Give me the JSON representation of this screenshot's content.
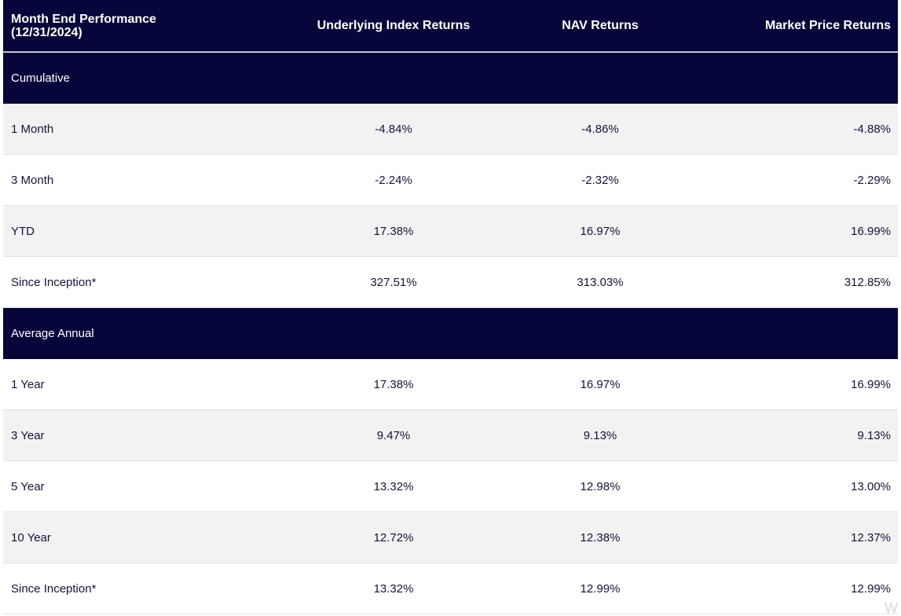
{
  "header": {
    "title": "Month End Performance (12/31/2024)",
    "columns": [
      "Underlying Index Returns",
      "NAV Returns",
      "Market Price Returns"
    ]
  },
  "sections": [
    {
      "title": "Cumulative",
      "rows": [
        [
          "1 Month",
          "-4.84%",
          "-4.86%",
          "-4.88%"
        ],
        [
          "3 Month",
          "-2.24%",
          "-2.32%",
          "-2.29%"
        ],
        [
          "YTD",
          "17.38%",
          "16.97%",
          "16.99%"
        ],
        [
          "Since Inception*",
          "327.51%",
          "313.03%",
          "312.85%"
        ]
      ]
    },
    {
      "title": "Average Annual",
      "rows": [
        [
          "1 Year",
          "17.38%",
          "16.97%",
          "16.99%"
        ],
        [
          "3 Year",
          "9.47%",
          "9.13%",
          "9.13%"
        ],
        [
          "5 Year",
          "13.32%",
          "12.98%",
          "13.00%"
        ],
        [
          "10 Year",
          "12.72%",
          "12.38%",
          "12.37%"
        ],
        [
          "Since Inception*",
          "13.32%",
          "12.99%",
          "12.99%"
        ]
      ]
    }
  ],
  "watermark": "W"
}
